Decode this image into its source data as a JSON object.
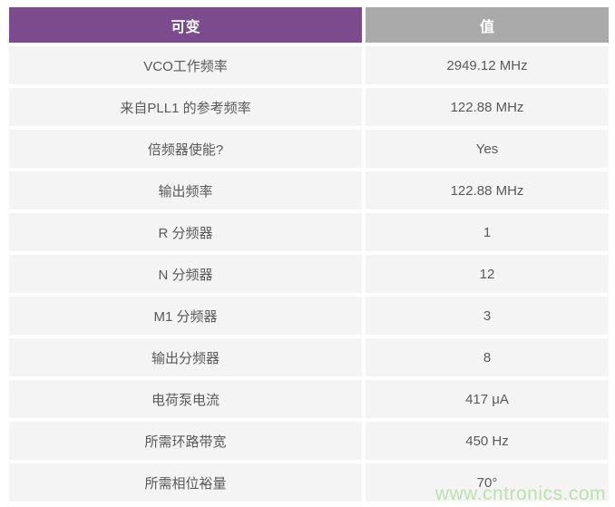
{
  "table": {
    "headers": {
      "variable": "可变",
      "value": "值"
    },
    "rows": [
      {
        "label": "VCO工作频率",
        "value": "2949.12 MHz"
      },
      {
        "label": "来自PLL1 的参考频率",
        "value": "122.88 MHz"
      },
      {
        "label": "倍频器使能?",
        "value": "Yes"
      },
      {
        "label": "输出频率",
        "value": "122.88 MHz"
      },
      {
        "label": "R 分频器",
        "value": "1"
      },
      {
        "label": "N 分频器",
        "value": "12"
      },
      {
        "label": "M1 分频器",
        "value": "3"
      },
      {
        "label": "输出分频器",
        "value": "8"
      },
      {
        "label": "电荷泵电流",
        "value": "417 μA"
      },
      {
        "label": "所需环路带宽",
        "value": "450 Hz"
      },
      {
        "label": "所需相位裕量",
        "value": "70°"
      }
    ]
  },
  "watermark": {
    "text": "www.cntronics.com"
  },
  "colors": {
    "header_variable_bg": "#7B4B8E",
    "header_value_bg": "#AAAAAA",
    "row_bg": "#F4F4F4",
    "text": "#595959",
    "watermark": "#BFE0AE"
  }
}
